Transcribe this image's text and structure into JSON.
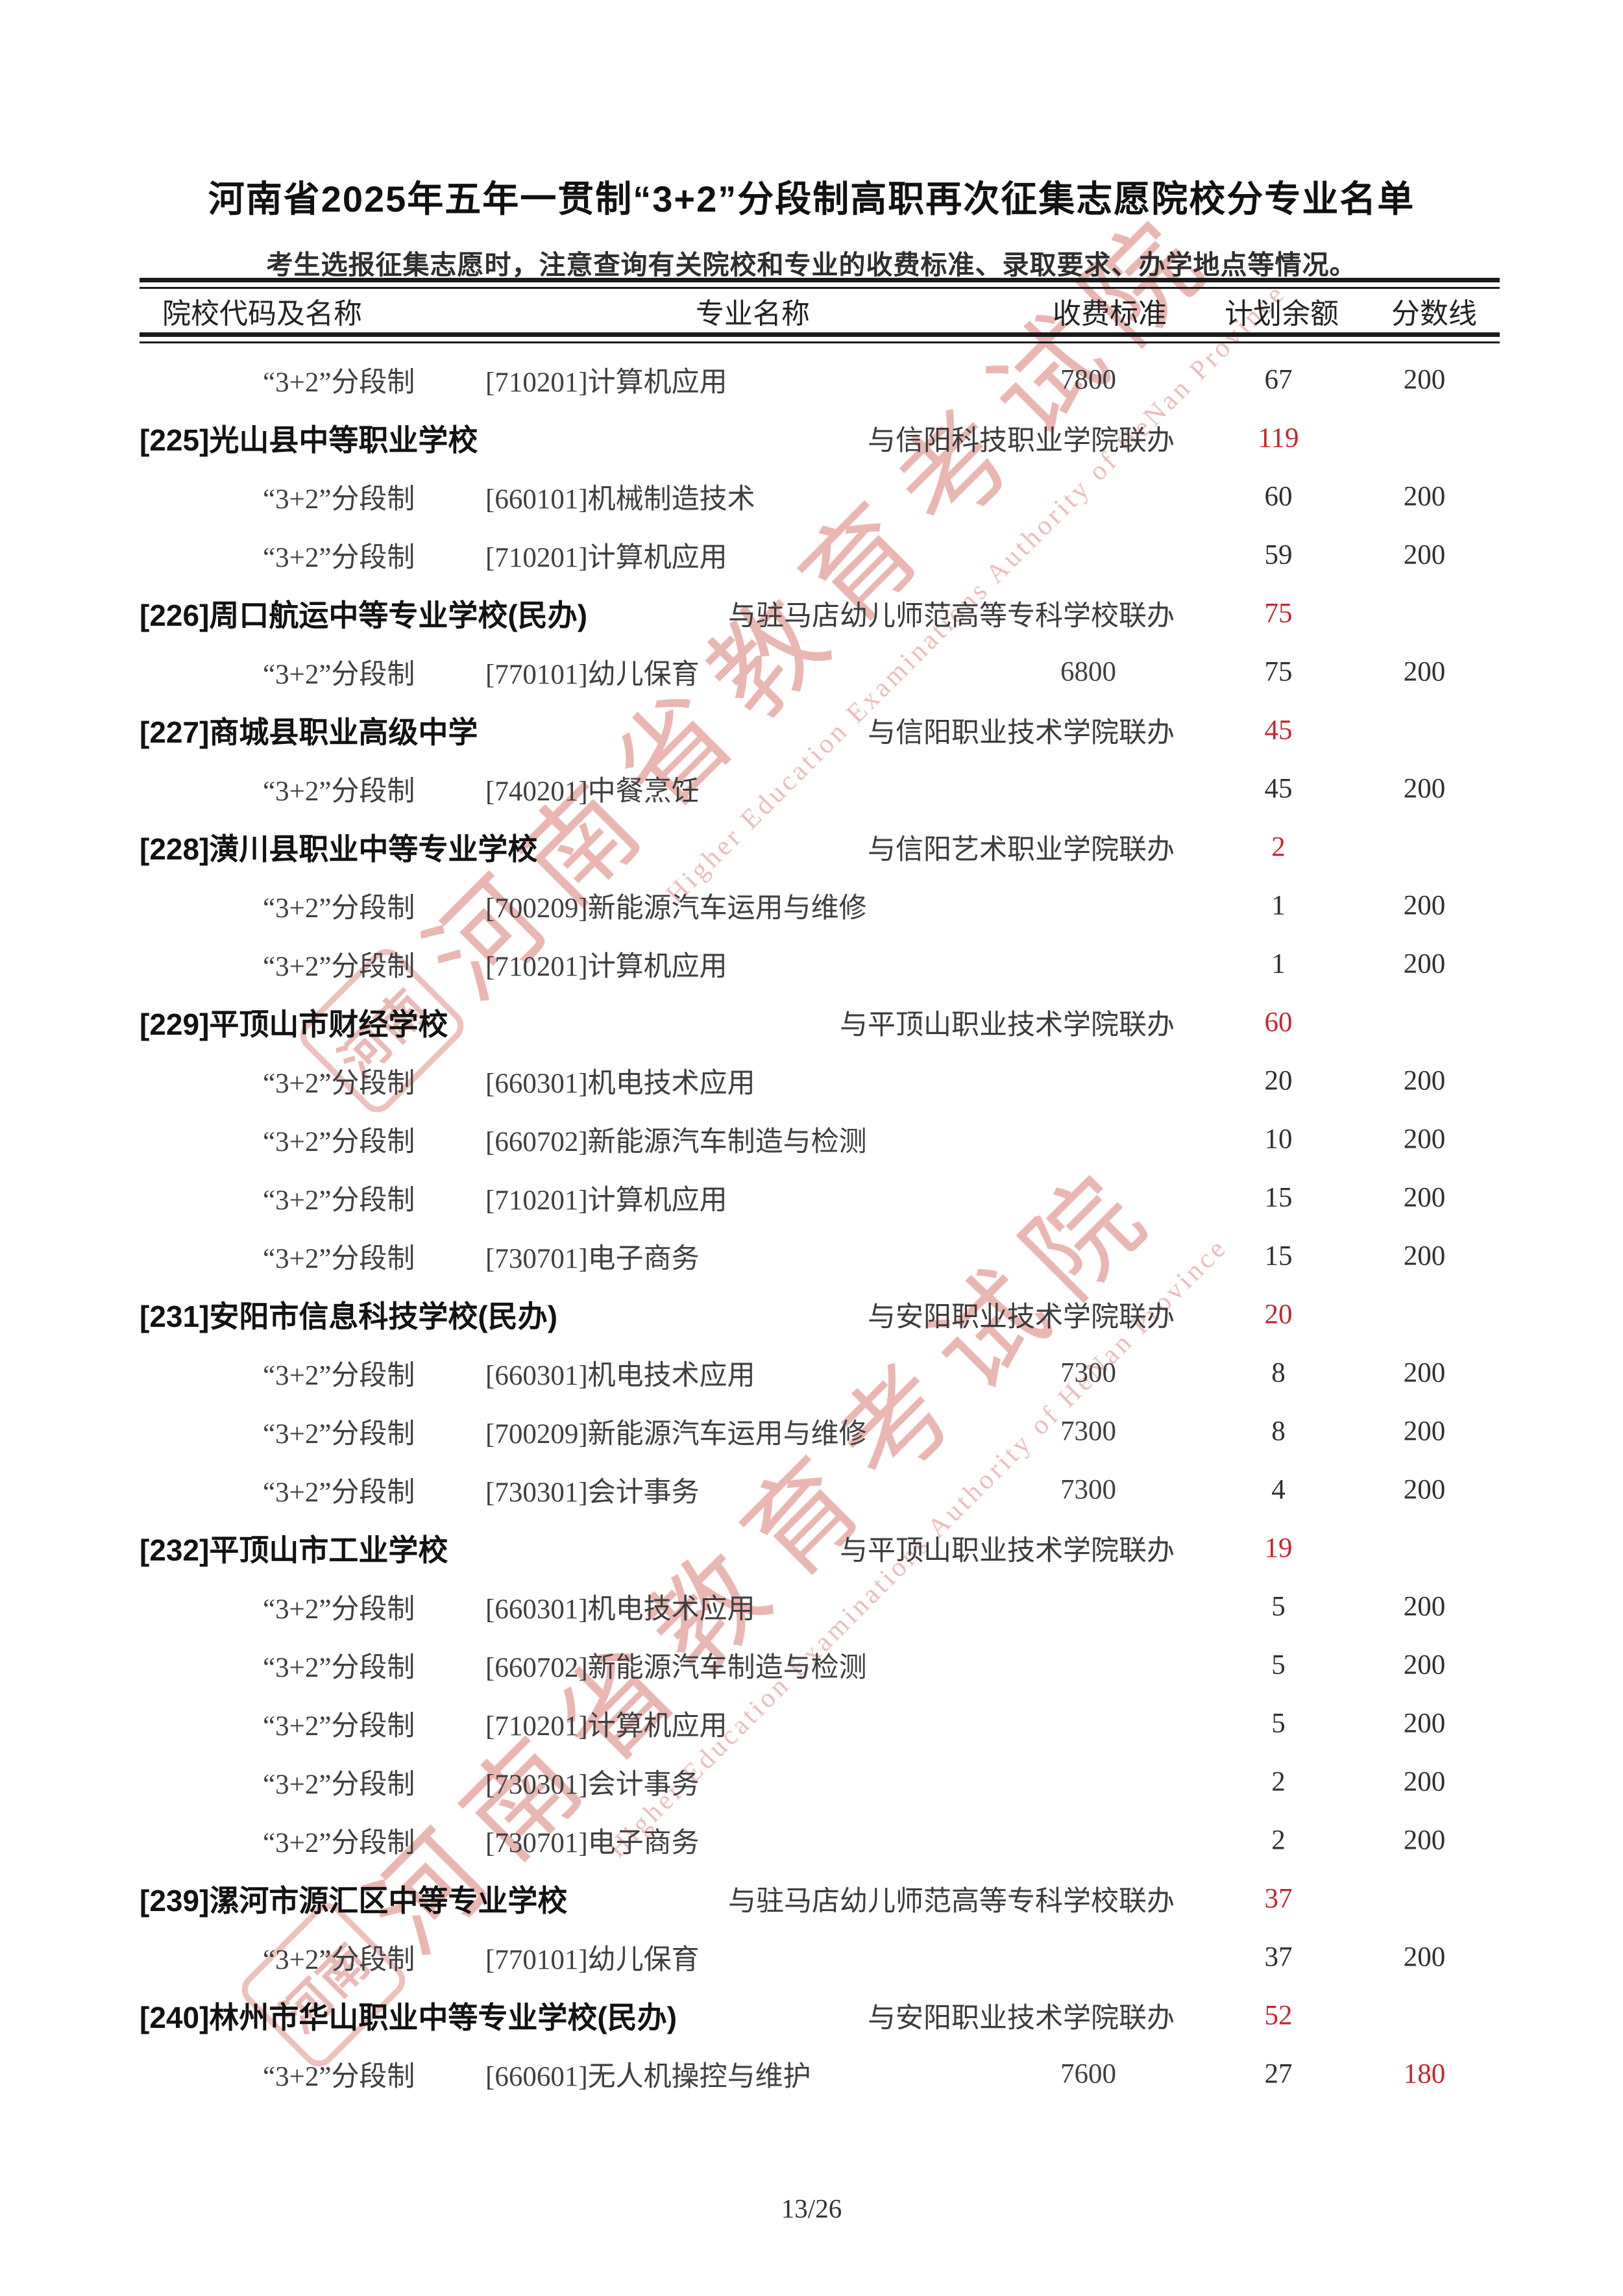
{
  "page": {
    "title": "河南省2025年五年一贯制“3+2”分段制高职再次征集志愿院校分专业名单",
    "subtitle": "考生选报征集志愿时，注意查询有关院校和专业的收费标准、录取要求、办学地点等情况。",
    "page_number": "13/26"
  },
  "watermark": {
    "cn": "河南省教育考试院",
    "en": "Higher Education Examinations Authority of HeNan Province",
    "seal": "河南"
  },
  "colors": {
    "accent_red": "#c9252b",
    "watermark_red": "#cb493e"
  },
  "table": {
    "headers": {
      "school": "院校代码及名称",
      "major": "专业名称",
      "fee": "收费标准",
      "plan": "计划余额",
      "score": "分数线"
    },
    "rows": [
      {
        "type": "major",
        "seg": "“3+2”分段制",
        "major": "[710201]计算机应用",
        "fee": "7800",
        "plan": "67",
        "score": "200"
      },
      {
        "type": "school",
        "name": "[225]光山县中等职业学校",
        "partner": "与信阳科技职业学院联办",
        "plan": "119"
      },
      {
        "type": "major",
        "seg": "“3+2”分段制",
        "major": "[660101]机械制造技术",
        "fee": "",
        "plan": "60",
        "score": "200"
      },
      {
        "type": "major",
        "seg": "“3+2”分段制",
        "major": "[710201]计算机应用",
        "fee": "",
        "plan": "59",
        "score": "200"
      },
      {
        "type": "school",
        "name": "[226]周口航运中等专业学校(民办)",
        "partner": "与驻马店幼儿师范高等专科学校联办",
        "plan": "75"
      },
      {
        "type": "major",
        "seg": "“3+2”分段制",
        "major": "[770101]幼儿保育",
        "fee": "6800",
        "plan": "75",
        "score": "200"
      },
      {
        "type": "school",
        "name": "[227]商城县职业高级中学",
        "partner": "与信阳职业技术学院联办",
        "plan": "45"
      },
      {
        "type": "major",
        "seg": "“3+2”分段制",
        "major": "[740201]中餐烹饪",
        "fee": "",
        "plan": "45",
        "score": "200"
      },
      {
        "type": "school",
        "name": "[228]潢川县职业中等专业学校",
        "partner": "与信阳艺术职业学院联办",
        "plan": "2"
      },
      {
        "type": "major",
        "seg": "“3+2”分段制",
        "major": "[700209]新能源汽车运用与维修",
        "fee": "",
        "plan": "1",
        "score": "200"
      },
      {
        "type": "major",
        "seg": "“3+2”分段制",
        "major": "[710201]计算机应用",
        "fee": "",
        "plan": "1",
        "score": "200"
      },
      {
        "type": "school",
        "name": "[229]平顶山市财经学校",
        "partner": "与平顶山职业技术学院联办",
        "plan": "60"
      },
      {
        "type": "major",
        "seg": "“3+2”分段制",
        "major": "[660301]机电技术应用",
        "fee": "",
        "plan": "20",
        "score": "200"
      },
      {
        "type": "major",
        "seg": "“3+2”分段制",
        "major": "[660702]新能源汽车制造与检测",
        "fee": "",
        "plan": "10",
        "score": "200"
      },
      {
        "type": "major",
        "seg": "“3+2”分段制",
        "major": "[710201]计算机应用",
        "fee": "",
        "plan": "15",
        "score": "200"
      },
      {
        "type": "major",
        "seg": "“3+2”分段制",
        "major": "[730701]电子商务",
        "fee": "",
        "plan": "15",
        "score": "200"
      },
      {
        "type": "school",
        "name": "[231]安阳市信息科技学校(民办)",
        "partner": "与安阳职业技术学院联办",
        "plan": "20"
      },
      {
        "type": "major",
        "seg": "“3+2”分段制",
        "major": "[660301]机电技术应用",
        "fee": "7300",
        "plan": "8",
        "score": "200"
      },
      {
        "type": "major",
        "seg": "“3+2”分段制",
        "major": "[700209]新能源汽车运用与维修",
        "fee": "7300",
        "plan": "8",
        "score": "200"
      },
      {
        "type": "major",
        "seg": "“3+2”分段制",
        "major": "[730301]会计事务",
        "fee": "7300",
        "plan": "4",
        "score": "200"
      },
      {
        "type": "school",
        "name": "[232]平顶山市工业学校",
        "partner": "与平顶山职业技术学院联办",
        "plan": "19"
      },
      {
        "type": "major",
        "seg": "“3+2”分段制",
        "major": "[660301]机电技术应用",
        "fee": "",
        "plan": "5",
        "score": "200"
      },
      {
        "type": "major",
        "seg": "“3+2”分段制",
        "major": "[660702]新能源汽车制造与检测",
        "fee": "",
        "plan": "5",
        "score": "200"
      },
      {
        "type": "major",
        "seg": "“3+2”分段制",
        "major": "[710201]计算机应用",
        "fee": "",
        "plan": "5",
        "score": "200"
      },
      {
        "type": "major",
        "seg": "“3+2”分段制",
        "major": "[730301]会计事务",
        "fee": "",
        "plan": "2",
        "score": "200"
      },
      {
        "type": "major",
        "seg": "“3+2”分段制",
        "major": "[730701]电子商务",
        "fee": "",
        "plan": "2",
        "score": "200"
      },
      {
        "type": "school",
        "name": "[239]漯河市源汇区中等专业学校",
        "partner": "与驻马店幼儿师范高等专科学校联办",
        "plan": "37"
      },
      {
        "type": "major",
        "seg": "“3+2”分段制",
        "major": "[770101]幼儿保育",
        "fee": "",
        "plan": "37",
        "score": "200"
      },
      {
        "type": "school",
        "name": "[240]林州市华山职业中等专业学校(民办)",
        "partner": "与安阳职业技术学院联办",
        "plan": "52"
      },
      {
        "type": "major",
        "seg": "“3+2”分段制",
        "major": "[660601]无人机操控与维护",
        "fee": "7600",
        "plan": "27",
        "score": "180",
        "score_red": true
      }
    ]
  }
}
